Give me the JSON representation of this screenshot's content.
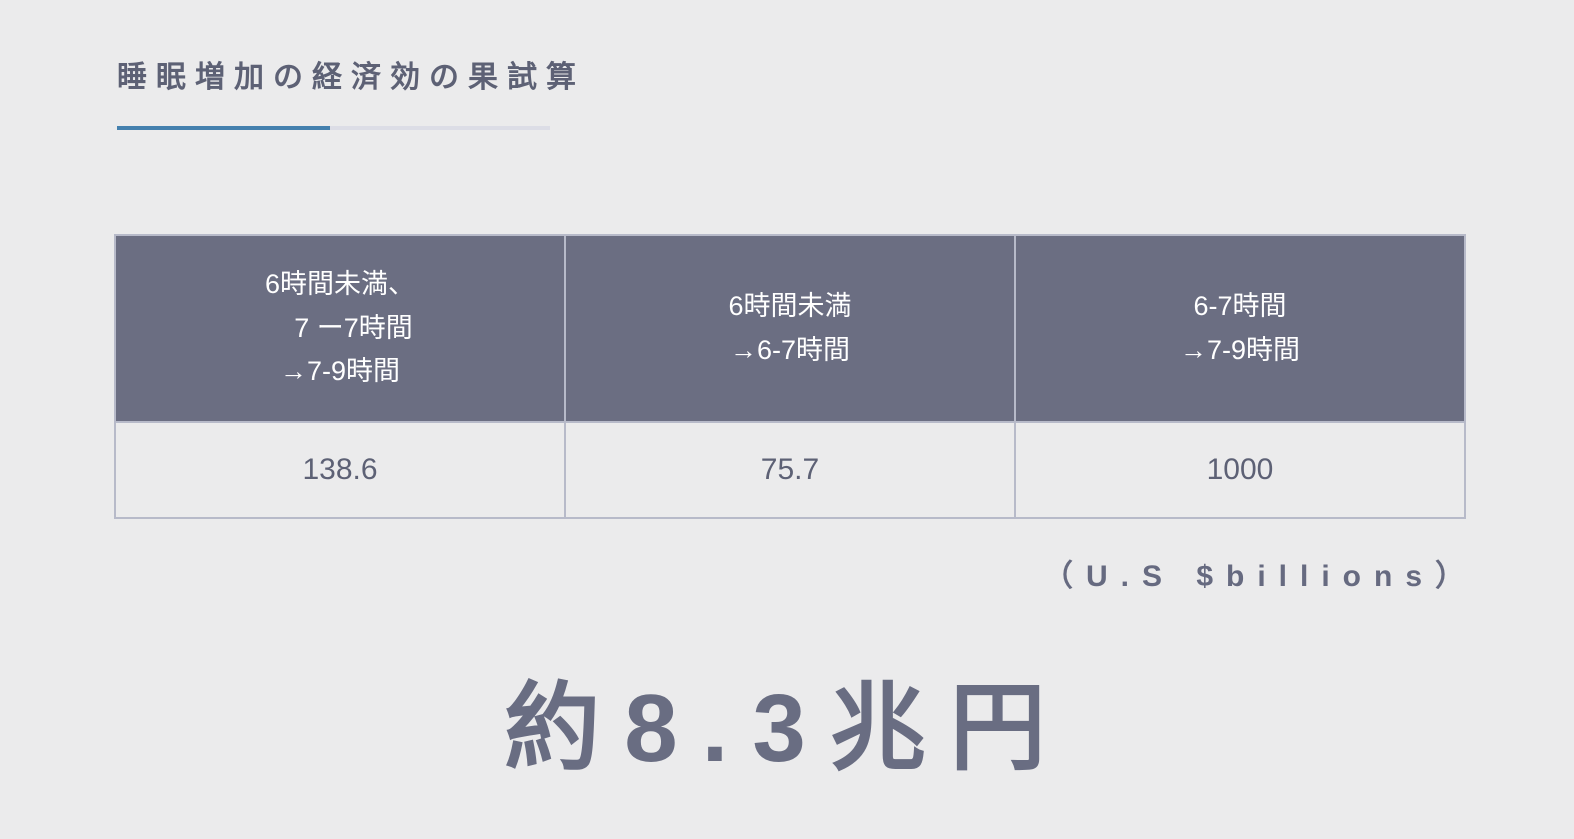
{
  "title": {
    "text": "睡眠増加の経済効の果試算"
  },
  "colors": {
    "background": "#ebebec",
    "title_text": "#5d6175",
    "underline_accent": "#4480ae",
    "underline_rest": "#dcdde6",
    "table_header_bg": "#6b6e82",
    "table_header_text": "#ffffff",
    "table_border": "#b7bac9",
    "table_value_text": "#5d6175",
    "units_text": "#666a80",
    "total_text": "#696d82"
  },
  "table": {
    "columns": [
      {
        "header_lines": [
          "6時間未満、",
          "　7 ー7時間",
          "→7-9時間"
        ],
        "value": "138.6"
      },
      {
        "header_lines": [
          "6時間未満",
          "→6-7時間"
        ],
        "value": "75.7"
      },
      {
        "header_lines": [
          "6-7時間",
          "→7-9時間"
        ],
        "value": "1000"
      }
    ]
  },
  "units": {
    "text": "（U.S $billions）"
  },
  "total": {
    "text": "約8.3兆円"
  },
  "chart_data": {
    "type": "table",
    "title": "睡眠増加の経済効の果試算",
    "categories": [
      "6時間未満、7ー7時間 →7-9時間",
      "6時間未満 →6-7時間",
      "6-7時間 →7-9時間"
    ],
    "values": [
      138.6,
      75.7,
      1000
    ],
    "unit": "U.S $billions",
    "total_annotation": "約8.3兆円",
    "legend_position": "none",
    "grid": false
  }
}
